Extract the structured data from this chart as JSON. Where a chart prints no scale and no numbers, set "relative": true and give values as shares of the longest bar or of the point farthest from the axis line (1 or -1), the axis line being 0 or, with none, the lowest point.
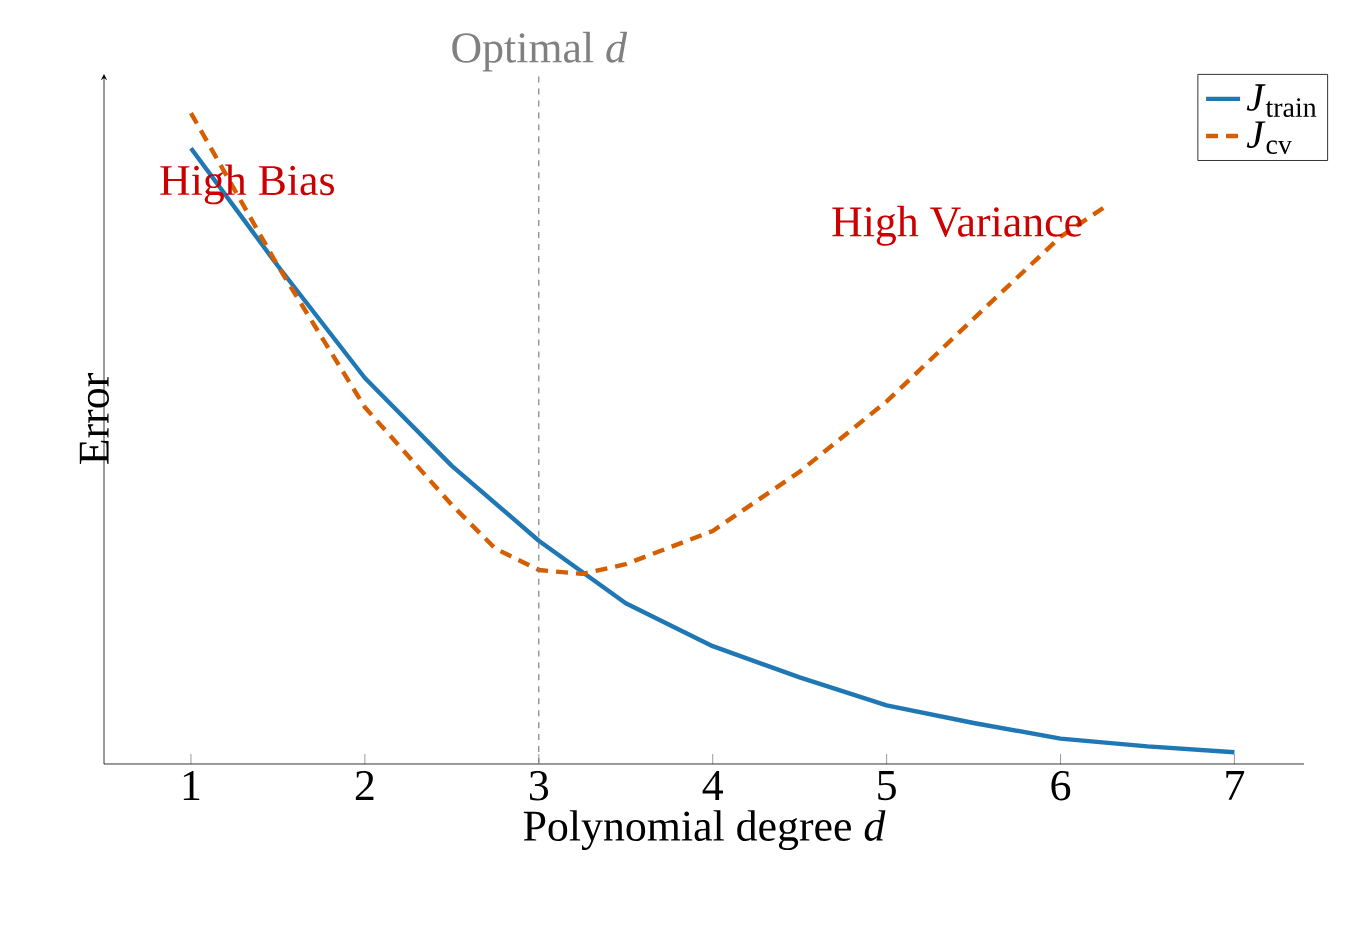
{
  "chart_data": {
    "type": "line",
    "relative": true,
    "xlabel": "Polynomial degree *d*",
    "ylabel": "Error",
    "xlim": [
      0.5,
      7.4
    ],
    "xticks": [
      1,
      2,
      3,
      4,
      5,
      6,
      7
    ],
    "legend": "top right",
    "marker": "none",
    "grid": false,
    "series": [
      {
        "name": "*J*$_{train}$",
        "color": "#1f77b4",
        "line_style": "solid",
        "x": [
          1,
          1.5,
          2,
          2.5,
          3,
          3.5,
          4,
          4.5,
          5,
          5.5,
          6,
          6.5,
          7
        ],
        "values": [
          0.946,
          0.765,
          0.593,
          0.458,
          0.343,
          0.247,
          0.181,
          0.133,
          0.09,
          0.063,
          0.039,
          0.027,
          0.018
        ]
      },
      {
        "name": "*J*$_{cv}$",
        "color": "#d55e00",
        "line_style": "dashed",
        "x": [
          1,
          1.5,
          2,
          2.5,
          2.75,
          3,
          3.25,
          3.5,
          4,
          4.5,
          5,
          5.5,
          6,
          6.25
        ],
        "values": [
          1.0,
          0.765,
          0.548,
          0.398,
          0.331,
          0.298,
          0.292,
          0.307,
          0.358,
          0.449,
          0.557,
          0.684,
          0.81,
          0.855
        ]
      }
    ],
    "ref_lines": [
      {
        "axis": "x",
        "value": 3,
        "label": "Optimal *d*",
        "color": "#808080",
        "line_style": "dashed"
      }
    ],
    "annotations": [
      "High Bias",
      "High Variance"
    ]
  }
}
